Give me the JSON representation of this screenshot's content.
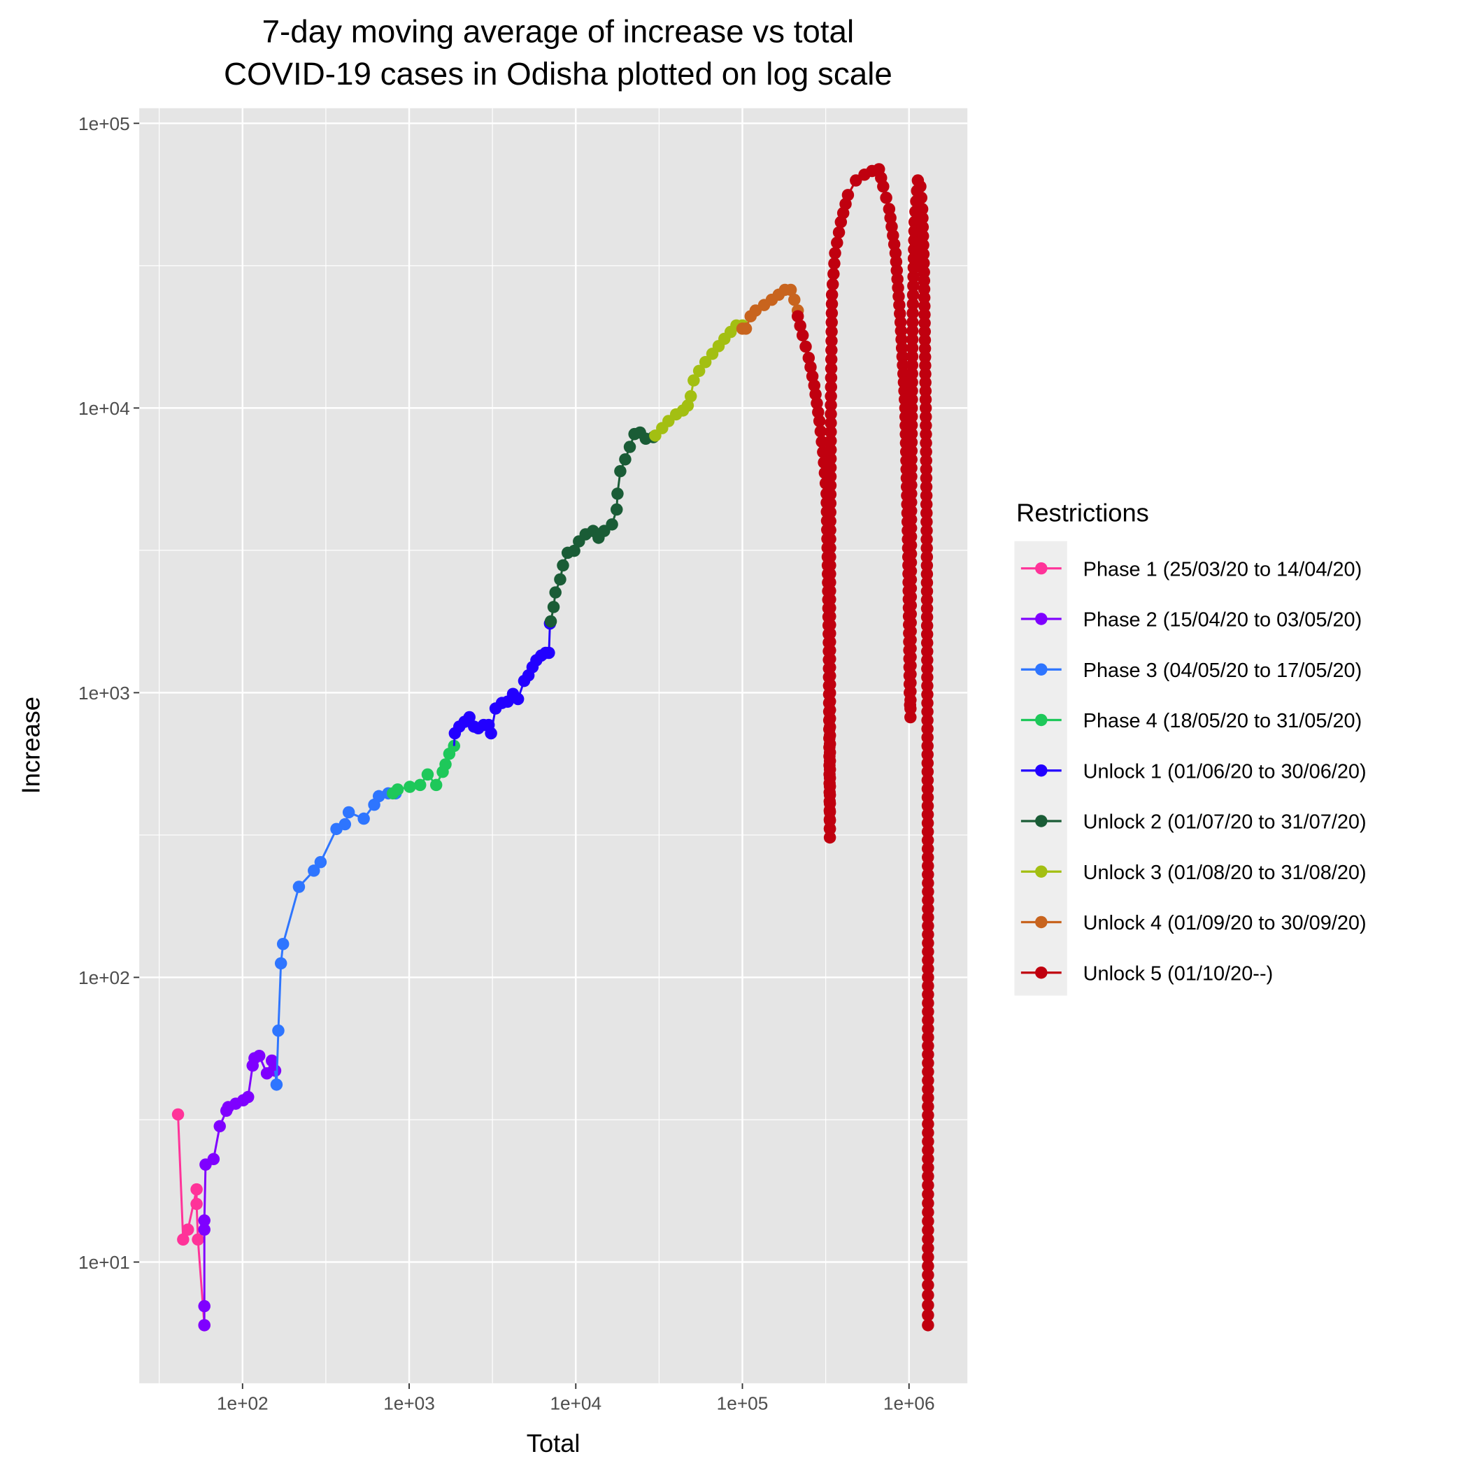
{
  "chart_data": {
    "type": "line",
    "title": "7-day moving average of increase vs total\nCOVID-19 cases in Odisha plotted on log scale",
    "title_lines": [
      "7-day moving average of increase vs total",
      "COVID-19 cases in Odisha plotted on log scale"
    ],
    "xlabel": "Total",
    "ylabel": "Increase",
    "xscale": "log10",
    "yscale": "log10",
    "xlim": [
      24,
      2240000
    ],
    "ylim": [
      3.75,
      113000
    ],
    "x_ticks": [
      {
        "value": 100,
        "label": "1e+02"
      },
      {
        "value": 1000,
        "label": "1e+03"
      },
      {
        "value": 10000,
        "label": "1e+04"
      },
      {
        "value": 100000,
        "label": "1e+05"
      },
      {
        "value": 1000000,
        "label": "1e+06"
      }
    ],
    "y_ticks": [
      {
        "value": 10,
        "label": "1e+01"
      },
      {
        "value": 100,
        "label": "1e+02"
      },
      {
        "value": 1000,
        "label": "1e+03"
      },
      {
        "value": 10000,
        "label": "1e+04"
      },
      {
        "value": 100000,
        "label": "1e+05"
      }
    ],
    "grid": true,
    "legend": {
      "title": "Restrictions",
      "position": "right"
    },
    "series": [
      {
        "name": "Phase 1 (25/03/20 to 14/04/20)",
        "color": "#ff3399",
        "x": [
          41,
          44,
          47,
          53,
          53,
          54,
          59
        ],
        "y": [
          33,
          12,
          13,
          18,
          16,
          12,
          6
        ]
      },
      {
        "name": "Phase 2 (15/04/20 to 03/05/20)",
        "color": "#7f00ff",
        "x": [
          59,
          59,
          59,
          59,
          60,
          67,
          73,
          80,
          82,
          91,
          101,
          108,
          115,
          118,
          126,
          140,
          150,
          157
        ],
        "y": [
          6,
          7,
          13,
          14,
          22,
          23,
          30,
          34,
          35,
          36,
          37,
          38,
          49,
          52,
          53,
          46,
          51,
          47
        ]
      },
      {
        "name": "Phase 3 (04/05/20 to 17/05/20)",
        "color": "#2e75ff",
        "x": [
          160,
          164,
          170,
          175,
          218,
          268,
          294,
          366,
          412,
          434,
          534,
          617,
          658,
          749,
          830
        ],
        "y": [
          42,
          65,
          112,
          131,
          208,
          237,
          254,
          332,
          345,
          380,
          361,
          404,
          433,
          443,
          443
        ]
      },
      {
        "name": "Phase 4 (18/05/20 to 31/05/20)",
        "color": "#1ec85a",
        "x": [
          798,
          853,
          1009,
          1164,
          1291,
          1453,
          1590,
          1653,
          1741,
          1860
        ],
        "y": [
          443,
          457,
          467,
          474,
          516,
          474,
          527,
          560,
          610,
          650
        ]
      },
      {
        "name": "Unlock 1 (01/06/20 to 30/06/20)",
        "color": "#2200ff",
        "x": [
          1880,
          2000,
          2150,
          2300,
          2450,
          2600,
          2800,
          3000,
          3100,
          3300,
          3600,
          3900,
          4200,
          4500,
          4900,
          5200,
          5500,
          5800,
          6200,
          6600,
          6900,
          7000
        ],
        "y": [
          720,
          760,
          790,
          820,
          760,
          750,
          770,
          770,
          720,
          880,
          920,
          930,
          990,
          950,
          1100,
          1150,
          1230,
          1300,
          1350,
          1380,
          1380,
          1750
        ]
      },
      {
        "name": "Unlock 2 (01/07/20 to 31/07/20)",
        "color": "#1a5c36",
        "x": [
          7080,
          7360,
          7550,
          8060,
          8380,
          8940,
          9790,
          10450,
          11450,
          12700,
          13700,
          14800,
          16500,
          17600,
          17800,
          18500,
          19800,
          21100,
          22500,
          24300,
          26300,
          29200
        ],
        "y": [
          1780,
          2000,
          2250,
          2500,
          2800,
          3100,
          3150,
          3400,
          3600,
          3700,
          3500,
          3700,
          3900,
          4400,
          5000,
          6000,
          6600,
          7300,
          8100,
          8200,
          7800,
          7900
        ]
      },
      {
        "name": "Unlock 3 (01/08/20 to 31/08/20)",
        "color": "#a3bf12",
        "x": [
          30000,
          33000,
          36000,
          40000,
          44000,
          47000,
          49000,
          51000,
          55000,
          60000,
          66000,
          72000,
          78000,
          85000,
          92000,
          100000
        ],
        "y": [
          8000,
          8500,
          9000,
          9500,
          9800,
          10200,
          11000,
          12500,
          13500,
          14500,
          15500,
          16500,
          17500,
          18500,
          19500,
          19500
        ]
      },
      {
        "name": "Unlock 4 (01/09/20 to 30/09/20)",
        "color": "#c8641e",
        "x": [
          100000,
          105000,
          112000,
          120000,
          135000,
          150000,
          165000,
          180000,
          195000,
          205000,
          215000
        ],
        "y": [
          19000,
          19000,
          21000,
          22000,
          23000,
          24000,
          25000,
          26000,
          26000,
          24000,
          22000
        ]
      },
      {
        "name": "Unlock 5 (01/10/20--)",
        "color": "#c0000f",
        "x": [
          215000,
          230000,
          250000,
          270000,
          290000,
          305000,
          320000,
          325000,
          330000,
          332000,
          335000,
          336000,
          340000,
          345000,
          360000,
          390000,
          430000,
          480000,
          540000,
          600000,
          660000,
          700000,
          760000,
          830000,
          890000,
          950000,
          990000,
          1010000,
          1020000,
          1030000,
          1050000,
          1080000,
          1130000,
          1170000,
          1200000,
          1230000,
          1260000,
          1280000,
          1290000,
          1300000,
          1300000,
          1300000,
          1300000,
          1300000
        ],
        "y": [
          21000,
          18000,
          15000,
          12000,
          9000,
          7000,
          5000,
          3000,
          1500,
          800,
          310,
          3000,
          11000,
          25000,
          35000,
          45000,
          56000,
          63000,
          66000,
          68000,
          69000,
          60000,
          50000,
          35000,
          20000,
          10000,
          3000,
          1000,
          820,
          5000,
          20000,
          45000,
          63000,
          60000,
          50000,
          30000,
          10000,
          3000,
          800,
          200,
          50,
          20,
          9,
          6
        ]
      }
    ]
  }
}
